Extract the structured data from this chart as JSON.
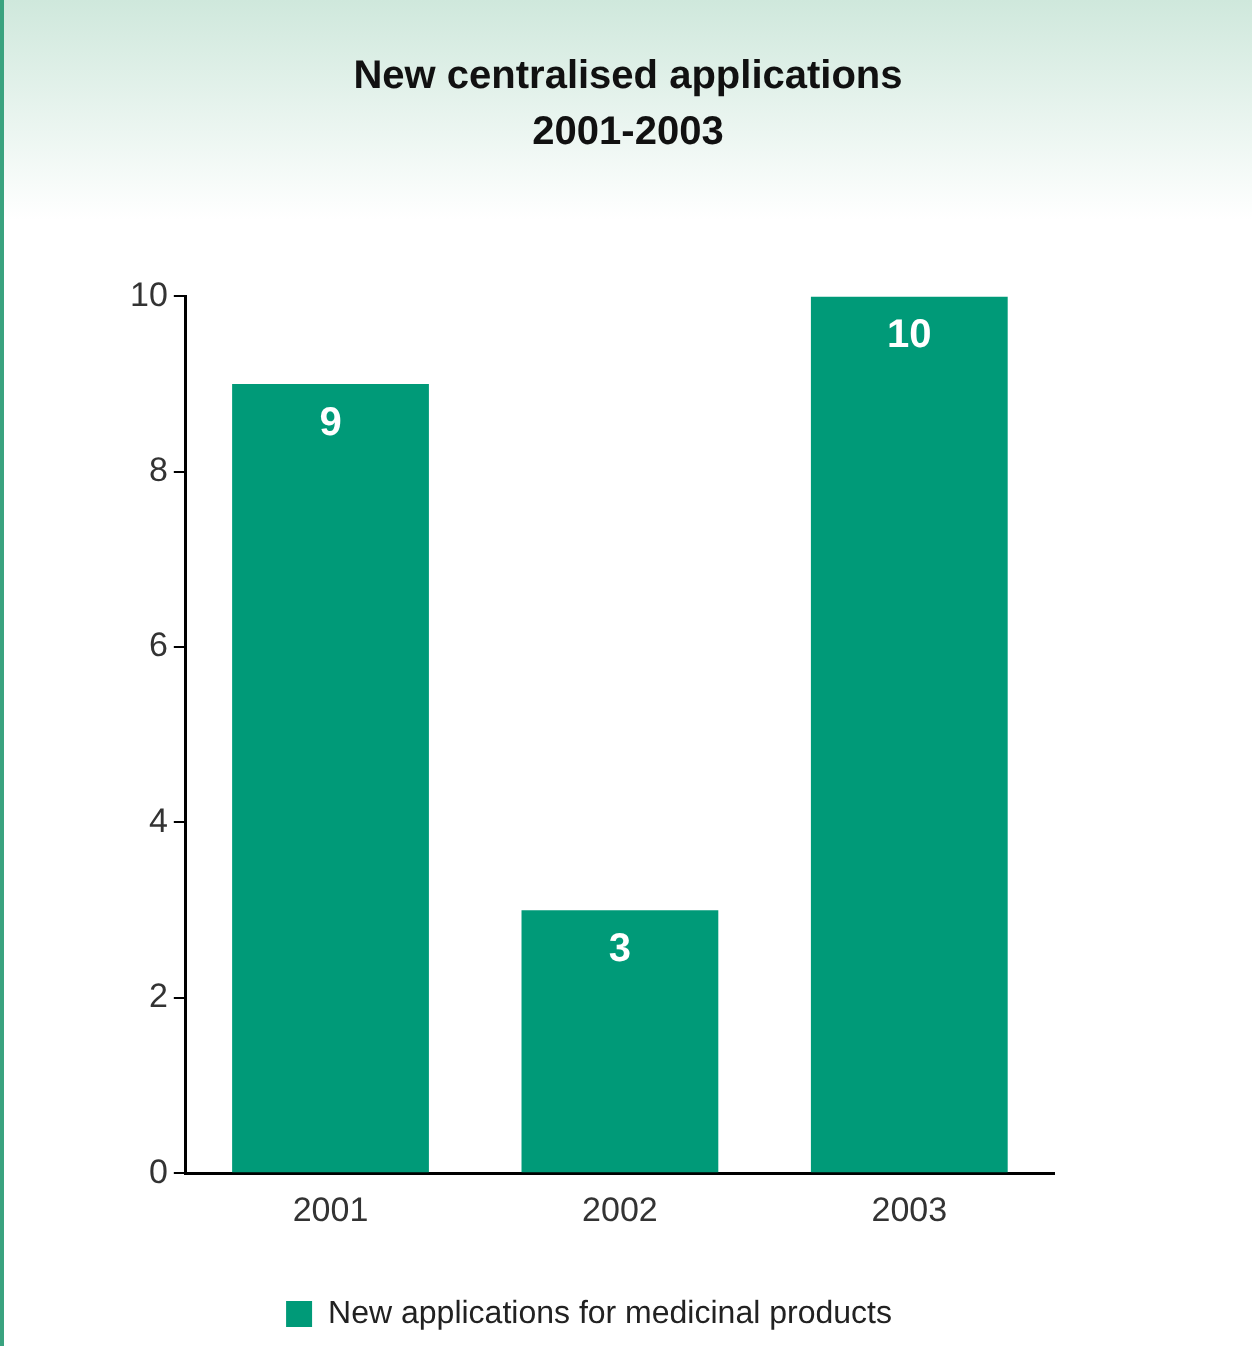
{
  "chart_data": {
    "type": "bar",
    "title": "New centralised applications\n2001-2003",
    "categories": [
      "2001",
      "2002",
      "2003"
    ],
    "series": [
      {
        "name": "New applications for medicinal products",
        "color": "#009a78",
        "values": [
          9,
          3,
          10
        ]
      }
    ],
    "ylim": [
      0,
      10
    ],
    "yticks": [
      0,
      2,
      4,
      6,
      8,
      10
    ],
    "grid": false,
    "legend": "bottom",
    "data_labels": true
  }
}
